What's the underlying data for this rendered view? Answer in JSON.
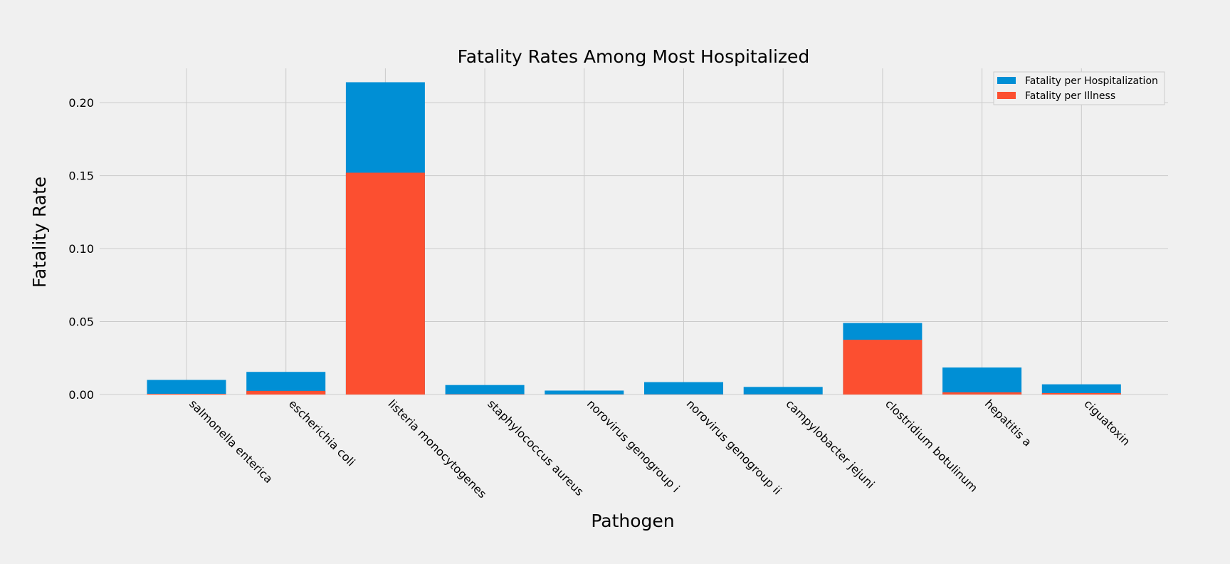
{
  "chart_data": {
    "type": "bar",
    "stacked": "overlay",
    "title": "Fatality Rates Among Most Hospitalized",
    "xlabel": "Pathogen",
    "ylabel": "Fatality Rate",
    "ylim": [
      0,
      0.2235
    ],
    "yticks": [
      "0.00",
      "0.05",
      "0.10",
      "0.15",
      "0.20"
    ],
    "ytick_values": [
      0,
      0.05,
      0.1,
      0.15,
      0.2
    ],
    "grid": true,
    "legend_position": "top-right",
    "categories": [
      "salmonella enterica",
      "escherichia coli",
      "listeria monocytogenes",
      "staphylococcus aureus",
      "norovirus genogroup i",
      "norovirus genogroup ii",
      "campylobacter jejuni",
      "clostridium botulinum",
      "hepatitis a",
      "ciguatoxin"
    ],
    "series": [
      {
        "name": "Fatality per Hospitalization",
        "color": "#008fd5",
        "values": [
          0.01,
          0.0155,
          0.214,
          0.0065,
          0.0027,
          0.0085,
          0.0052,
          0.049,
          0.0185,
          0.007
        ]
      },
      {
        "name": "Fatality per Illness",
        "color": "#fc4f30",
        "values": [
          0.0005,
          0.0025,
          0.152,
          0.0002,
          0.0001,
          0.0001,
          0.0001,
          0.0375,
          0.0015,
          0.001
        ]
      }
    ]
  }
}
